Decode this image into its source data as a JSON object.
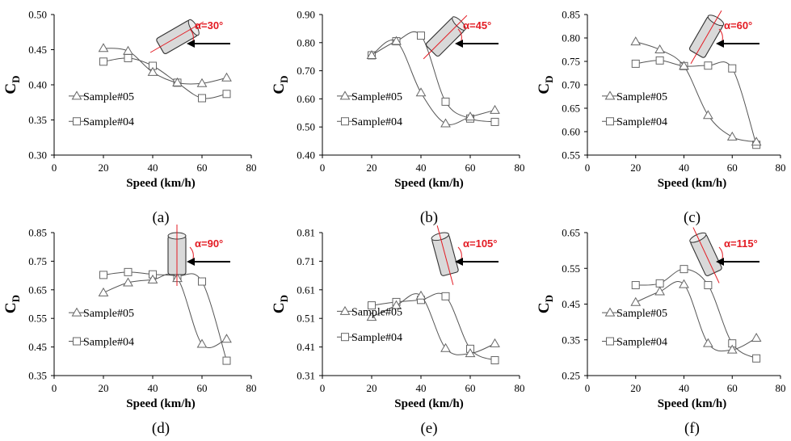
{
  "chart_data": [
    {
      "type": "line",
      "panel_label": "(a)",
      "angle": "α=30°",
      "xlabel": "Speed (km/h)",
      "ylabel": "C",
      "ylabel_sub": "D",
      "xlim": [
        0,
        80
      ],
      "ylim": [
        0.3,
        0.5
      ],
      "xticks": [
        "0",
        "20",
        "40",
        "60",
        "80"
      ],
      "yticks": [
        "0.30",
        "0.35",
        "0.40",
        "0.45",
        "0.50"
      ],
      "legend_position": "bottom-left",
      "legend_row_offsets": [
        0.24,
        0.42
      ],
      "x": [
        20,
        30,
        40,
        50,
        60,
        70
      ],
      "series": [
        {
          "name": "Sample#04",
          "marker": "square",
          "values": [
            0.433,
            0.438,
            0.427,
            0.403,
            0.381,
            0.387
          ]
        },
        {
          "name": "Sample#05",
          "marker": "triangle",
          "values": [
            0.452,
            0.448,
            0.418,
            0.403,
            0.402,
            0.41
          ]
        }
      ],
      "cylinder_tilt": 60
    },
    {
      "type": "line",
      "panel_label": "(b)",
      "angle": "α=45°",
      "xlabel": "Speed (km/h)",
      "ylabel": "C",
      "ylabel_sub": "D",
      "xlim": [
        0,
        80
      ],
      "ylim": [
        0.4,
        0.9
      ],
      "xticks": [
        "0",
        "20",
        "40",
        "60",
        "80"
      ],
      "yticks": [
        "0.40",
        "0.50",
        "0.60",
        "0.70",
        "0.80",
        "0.90"
      ],
      "legend_position": "bottom-left",
      "legend_row_offsets": [
        0.24,
        0.42
      ],
      "x": [
        20,
        30,
        40,
        50,
        60,
        70
      ],
      "series": [
        {
          "name": "Sample#04",
          "marker": "square",
          "values": [
            0.755,
            0.805,
            0.825,
            0.59,
            0.53,
            0.518
          ]
        },
        {
          "name": "Sample#05",
          "marker": "triangle",
          "values": [
            0.755,
            0.805,
            0.622,
            0.512,
            0.536,
            0.56
          ]
        }
      ],
      "cylinder_tilt": 45
    },
    {
      "type": "line",
      "panel_label": "(c)",
      "angle": "α=60°",
      "xlabel": "Speed (km/h)",
      "ylabel": "C",
      "ylabel_sub": "D",
      "xlim": [
        0,
        80
      ],
      "ylim": [
        0.55,
        0.85
      ],
      "xticks": [
        "0",
        "20",
        "40",
        "60",
        "80"
      ],
      "yticks": [
        "0.55",
        "0.60",
        "0.65",
        "0.70",
        "0.75",
        "0.80",
        "0.85"
      ],
      "legend_position": "bottom-left",
      "legend_row_offsets": [
        0.24,
        0.42
      ],
      "x": [
        20,
        30,
        40,
        50,
        60,
        70
      ],
      "series": [
        {
          "name": "Sample#04",
          "marker": "square",
          "values": [
            0.745,
            0.752,
            0.74,
            0.741,
            0.735,
            0.572
          ]
        },
        {
          "name": "Sample#05",
          "marker": "triangle",
          "values": [
            0.792,
            0.775,
            0.74,
            0.635,
            0.589,
            0.578
          ]
        }
      ],
      "cylinder_tilt": 30
    },
    {
      "type": "line",
      "panel_label": "(d)",
      "angle": "α=90°",
      "xlabel": "Speed (km/h)",
      "ylabel": "C",
      "ylabel_sub": "D",
      "xlim": [
        0,
        80
      ],
      "ylim": [
        0.35,
        0.85
      ],
      "xticks": [
        "0",
        "20",
        "40",
        "60",
        "80"
      ],
      "yticks": [
        "0.35",
        "0.45",
        "0.55",
        "0.65",
        "0.75",
        "0.85"
      ],
      "legend_position": "bottom-left",
      "legend_row_offsets": [
        0.24,
        0.44
      ],
      "x": [
        20,
        30,
        40,
        50,
        60,
        70
      ],
      "series": [
        {
          "name": "Sample#04",
          "marker": "square",
          "values": [
            0.702,
            0.712,
            0.704,
            0.699,
            0.679,
            0.402
          ]
        },
        {
          "name": "Sample#05",
          "marker": "triangle",
          "values": [
            0.64,
            0.675,
            0.685,
            0.69,
            0.46,
            0.478
          ]
        }
      ],
      "cylinder_tilt": 0
    },
    {
      "type": "line",
      "panel_label": "(e)",
      "angle": "α=105°",
      "xlabel": "Speed (km/h)",
      "ylabel": "C",
      "ylabel_sub": "D",
      "xlim": [
        0,
        80
      ],
      "ylim": [
        0.31,
        0.86
      ],
      "xticks": [
        "0",
        "20",
        "40",
        "60",
        "80"
      ],
      "yticks": [
        "0.31",
        "0.41",
        "0.51",
        "0.61",
        "0.71",
        "0.81"
      ],
      "legend_position": "bottom-left",
      "legend_row_offsets": [
        0.27,
        0.45
      ],
      "x": [
        20,
        30,
        40,
        50,
        60,
        70
      ],
      "series": [
        {
          "name": "Sample#04",
          "marker": "square",
          "values": [
            0.58,
            0.593,
            0.601,
            0.615,
            0.413,
            0.369
          ]
        },
        {
          "name": "Sample#05",
          "marker": "triangle",
          "values": [
            0.535,
            0.58,
            0.617,
            0.415,
            0.395,
            0.433
          ]
        }
      ],
      "cylinder_tilt": -15
    },
    {
      "type": "line",
      "panel_label": "(f)",
      "angle": "α=115°",
      "xlabel": "Speed (km/h)",
      "ylabel": "C",
      "ylabel_sub": "D",
      "xlim": [
        0,
        80
      ],
      "ylim": [
        0.25,
        0.65
      ],
      "xticks": [
        "0",
        "20",
        "40",
        "60",
        "80"
      ],
      "yticks": [
        "0.25",
        "0.35",
        "0.45",
        "0.55",
        "0.65"
      ],
      "legend_position": "bottom-left",
      "legend_row_offsets": [
        0.24,
        0.44
      ],
      "x": [
        20,
        30,
        40,
        50,
        60,
        70
      ],
      "series": [
        {
          "name": "Sample#04",
          "marker": "square",
          "values": [
            0.503,
            0.508,
            0.548,
            0.503,
            0.34,
            0.298
          ]
        },
        {
          "name": "Sample#05",
          "marker": "triangle",
          "values": [
            0.455,
            0.485,
            0.505,
            0.34,
            0.322,
            0.355
          ]
        }
      ],
      "cylinder_tilt": -25
    }
  ]
}
